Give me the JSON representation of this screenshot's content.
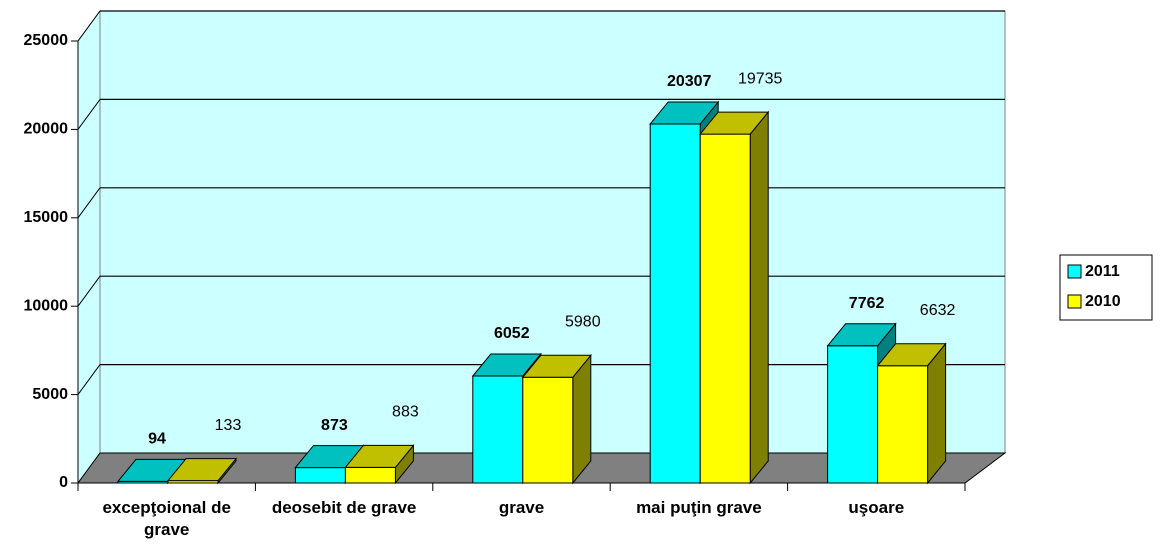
{
  "chart_data": {
    "type": "bar3d",
    "categories": [
      "excepţoional de grave",
      "deosebit de grave",
      "grave",
      "mai puţin grave",
      "uşoare"
    ],
    "series": [
      {
        "name": "2011",
        "color": "#00ffff",
        "values": [
          94,
          873,
          6052,
          20307,
          7762
        ]
      },
      {
        "name": "2010",
        "color": "#ffff00",
        "values": [
          133,
          883,
          5980,
          19735,
          6632
        ]
      }
    ],
    "ylim": [
      0,
      25000
    ],
    "yticks": [
      0,
      5000,
      10000,
      15000,
      20000,
      25000
    ],
    "grid": true,
    "legend": "right"
  }
}
